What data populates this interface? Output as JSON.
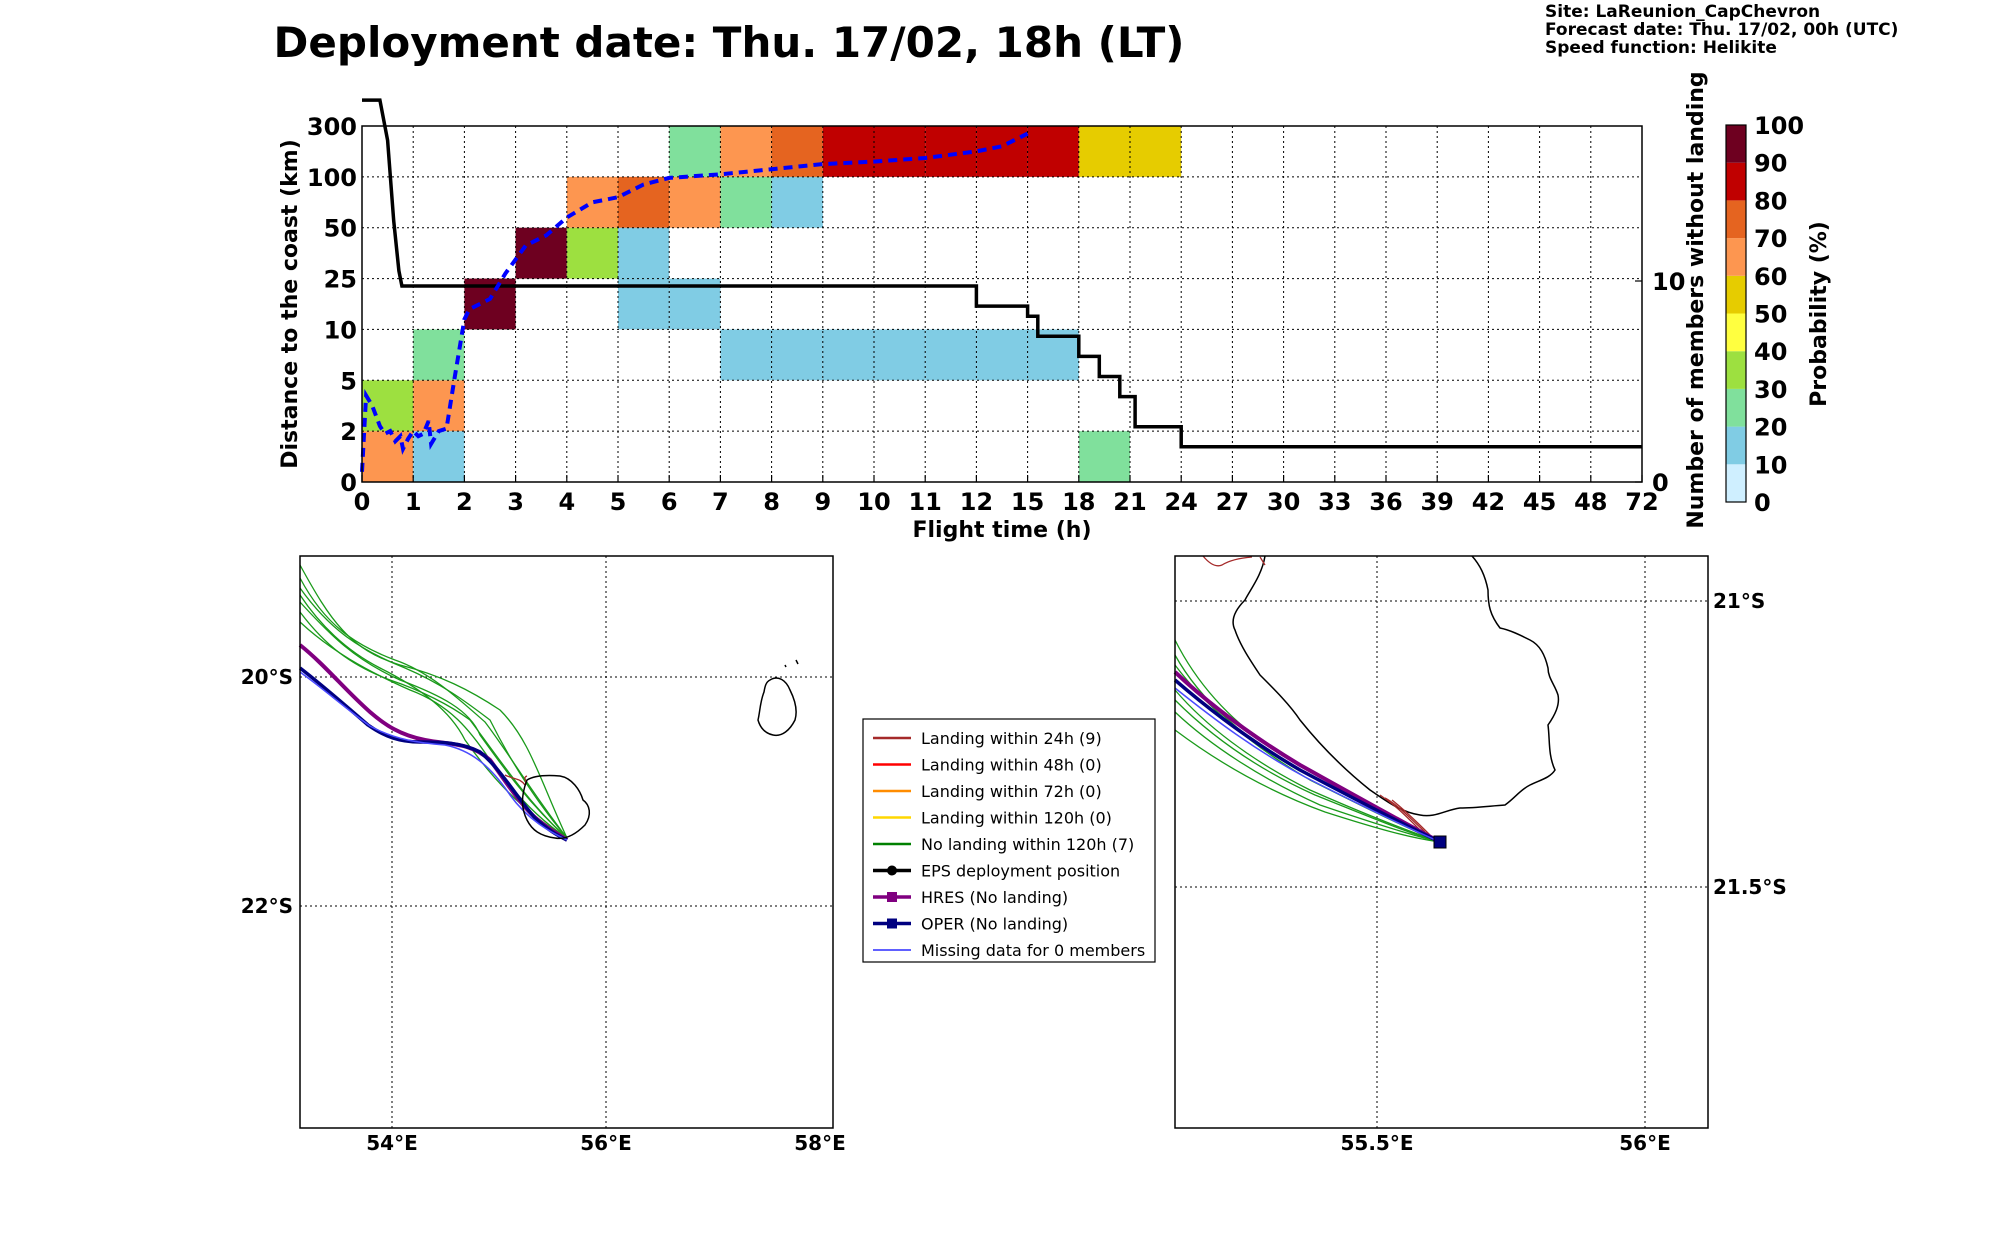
{
  "title": "Deployment date: Thu. 17/02, 18h (LT)",
  "meta": {
    "site": "Site: LaReunion_CapChevron",
    "forecast": "Forecast date: Thu. 17/02, 00h (UTC)",
    "speed": "Speed function: Helikite"
  },
  "chart_data": [
    {
      "type": "heatmap",
      "title": "Deployment date: Thu. 17/02, 18h (LT)",
      "xlabel": "Flight time (h)",
      "ylabel": "Distance to the coast (km)",
      "y2label": "Number of members without landing",
      "x_ticks": [
        "0",
        "1",
        "2",
        "3",
        "4",
        "5",
        "6",
        "7",
        "8",
        "9",
        "10",
        "11",
        "12",
        "15",
        "18",
        "21",
        "24",
        "27",
        "30",
        "33",
        "36",
        "39",
        "42",
        "45",
        "48",
        "72"
      ],
      "y_ticks": [
        "0",
        "2",
        "5",
        "10",
        "25",
        "50",
        "100",
        "300"
      ],
      "y2_ticks": [
        "0",
        "10"
      ],
      "colorbar": {
        "label": "Probability (%)",
        "levels": [
          0,
          10,
          20,
          30,
          40,
          50,
          60,
          70,
          80,
          90,
          100
        ],
        "colors": [
          "#cfefff",
          "#80cce4",
          "#80e09c",
          "#9de040",
          "#ffff40",
          "#e6cc00",
          "#fd9650",
          "#e56420",
          "#c00000",
          "#6e0020"
        ]
      },
      "cells": [
        {
          "x": 0,
          "y": 0,
          "prob": 60
        },
        {
          "x": 0,
          "y": 1,
          "prob": 30
        },
        {
          "x": 1,
          "y": 0,
          "prob": 10
        },
        {
          "x": 1,
          "y": 1,
          "prob": 60
        },
        {
          "x": 1,
          "y": 2,
          "prob": 20
        },
        {
          "x": 2,
          "y": 3,
          "prob": 90
        },
        {
          "x": 3,
          "y": 4,
          "prob": 90
        },
        {
          "x": 4,
          "y": 4,
          "prob": 30
        },
        {
          "x": 4,
          "y": 5,
          "prob": 60
        },
        {
          "x": 5,
          "y": 3,
          "prob": 10
        },
        {
          "x": 5,
          "y": 4,
          "prob": 10
        },
        {
          "x": 5,
          "y": 5,
          "prob": 70
        },
        {
          "x": 6,
          "y": 3,
          "prob": 10
        },
        {
          "x": 6,
          "y": 5,
          "prob": 60
        },
        {
          "x": 6,
          "y": 6,
          "prob": 20
        },
        {
          "x": 7,
          "y": 2,
          "prob": 10
        },
        {
          "x": 7,
          "y": 5,
          "prob": 20
        },
        {
          "x": 7,
          "y": 6,
          "prob": 60
        },
        {
          "x": 8,
          "y": 2,
          "prob": 10
        },
        {
          "x": 8,
          "y": 5,
          "prob": 10
        },
        {
          "x": 8,
          "y": 6,
          "prob": 70
        },
        {
          "x": 9,
          "y": 2,
          "prob": 10
        },
        {
          "x": 9,
          "y": 6,
          "prob": 80
        },
        {
          "x": 10,
          "y": 2,
          "prob": 10
        },
        {
          "x": 10,
          "y": 6,
          "prob": 80
        },
        {
          "x": 11,
          "y": 2,
          "prob": 10
        },
        {
          "x": 11,
          "y": 6,
          "prob": 80
        },
        {
          "x": 12,
          "y": 2,
          "prob": 10
        },
        {
          "x": 12,
          "y": 6,
          "prob": 80
        },
        {
          "x": 13,
          "y": 2,
          "prob": 10
        },
        {
          "x": 13,
          "y": 6,
          "prob": 80
        },
        {
          "x": 14,
          "y": 0,
          "prob": 20
        },
        {
          "x": 14,
          "y": 6,
          "prob": 50
        },
        {
          "x": 15,
          "y": 6,
          "prob": 50
        }
      ],
      "series": [
        {
          "name": "",
          "style": "solid-black",
          "axis": "right",
          "points": [
            [
              0,
              19
            ],
            [
              0.35,
              19
            ],
            [
              0.5,
              17
            ],
            [
              0.62,
              13
            ],
            [
              0.72,
              10.5
            ],
            [
              0.78,
              9.75
            ],
            [
              12,
              9.75
            ],
            [
              12,
              8.75
            ],
            [
              13,
              8.75
            ],
            [
              13,
              8.25
            ],
            [
              13.2,
              8.25
            ],
            [
              13.2,
              7.25
            ],
            [
              14,
              7.25
            ],
            [
              14,
              6.25
            ],
            [
              14.4,
              6.25
            ],
            [
              14.4,
              5.25
            ],
            [
              14.8,
              5.25
            ],
            [
              14.8,
              4.25
            ],
            [
              15.1,
              4.25
            ],
            [
              15.1,
              2.75
            ],
            [
              16,
              2.75
            ],
            [
              16,
              1.75
            ],
            [
              25,
              1.75
            ]
          ]
        },
        {
          "name": "",
          "style": "dashed-blue",
          "axis": "left",
          "points": [
            [
              0,
              0.2
            ],
            [
              0.08,
              1.7
            ],
            [
              0.2,
              1.5
            ],
            [
              0.35,
              1.1
            ],
            [
              0.45,
              0.95
            ],
            [
              0.55,
              1.0
            ],
            [
              0.65,
              0.8
            ],
            [
              0.75,
              0.9
            ],
            [
              0.8,
              0.65
            ],
            [
              0.9,
              0.85
            ],
            [
              1.0,
              1.0
            ],
            [
              1.1,
              0.9
            ],
            [
              1.2,
              0.95
            ],
            [
              1.3,
              1.2
            ],
            [
              1.35,
              0.75
            ],
            [
              1.5,
              1.0
            ],
            [
              1.65,
              1.05
            ],
            [
              1.8,
              2.0
            ],
            [
              1.9,
              2.6
            ],
            [
              2.0,
              3.2
            ],
            [
              2.1,
              3.4
            ],
            [
              2.3,
              3.5
            ],
            [
              2.5,
              3.6
            ],
            [
              2.8,
              4.1
            ],
            [
              3.2,
              4.65
            ],
            [
              3.6,
              4.85
            ],
            [
              4.0,
              5.2
            ],
            [
              4.5,
              5.5
            ],
            [
              5.0,
              5.6
            ],
            [
              5.5,
              5.85
            ],
            [
              6.0,
              5.98
            ],
            [
              7.0,
              6.05
            ],
            [
              8.0,
              6.15
            ],
            [
              9.0,
              6.25
            ],
            [
              10.0,
              6.3
            ],
            [
              11.0,
              6.37
            ],
            [
              12.0,
              6.5
            ],
            [
              12.5,
              6.6
            ],
            [
              13.0,
              6.85
            ]
          ]
        }
      ]
    },
    {
      "type": "map",
      "x_ticks": [
        "54°E",
        "56°E",
        "58°E"
      ],
      "y_ticks": [
        "20°S",
        "22°S"
      ]
    },
    {
      "type": "map",
      "x_ticks": [
        "55.5°E",
        "56°E"
      ],
      "y_ticks": [
        "21°S",
        "21.5°S"
      ]
    }
  ],
  "legend": {
    "items": [
      {
        "label": "Landing within 24h (9)",
        "color": "#a52a2a",
        "marker": "line"
      },
      {
        "label": "Landing within 48h (0)",
        "color": "#ff0000",
        "marker": "line"
      },
      {
        "label": "Landing within 72h (0)",
        "color": "#ff8c00",
        "marker": "line"
      },
      {
        "label": "Landing within 120h (0)",
        "color": "#ffd700",
        "marker": "line"
      },
      {
        "label": "No landing within 120h (7)",
        "color": "#008000",
        "marker": "line"
      },
      {
        "label": "EPS deployment position",
        "color": "#000000",
        "marker": "circle"
      },
      {
        "label": "HRES (No landing)",
        "color": "#800080",
        "marker": "square"
      },
      {
        "label": "OPER (No landing)",
        "color": "#000080",
        "marker": "square"
      },
      {
        "label": "Missing data for 0 members",
        "color": "#0000ff",
        "marker": "thin"
      }
    ]
  }
}
